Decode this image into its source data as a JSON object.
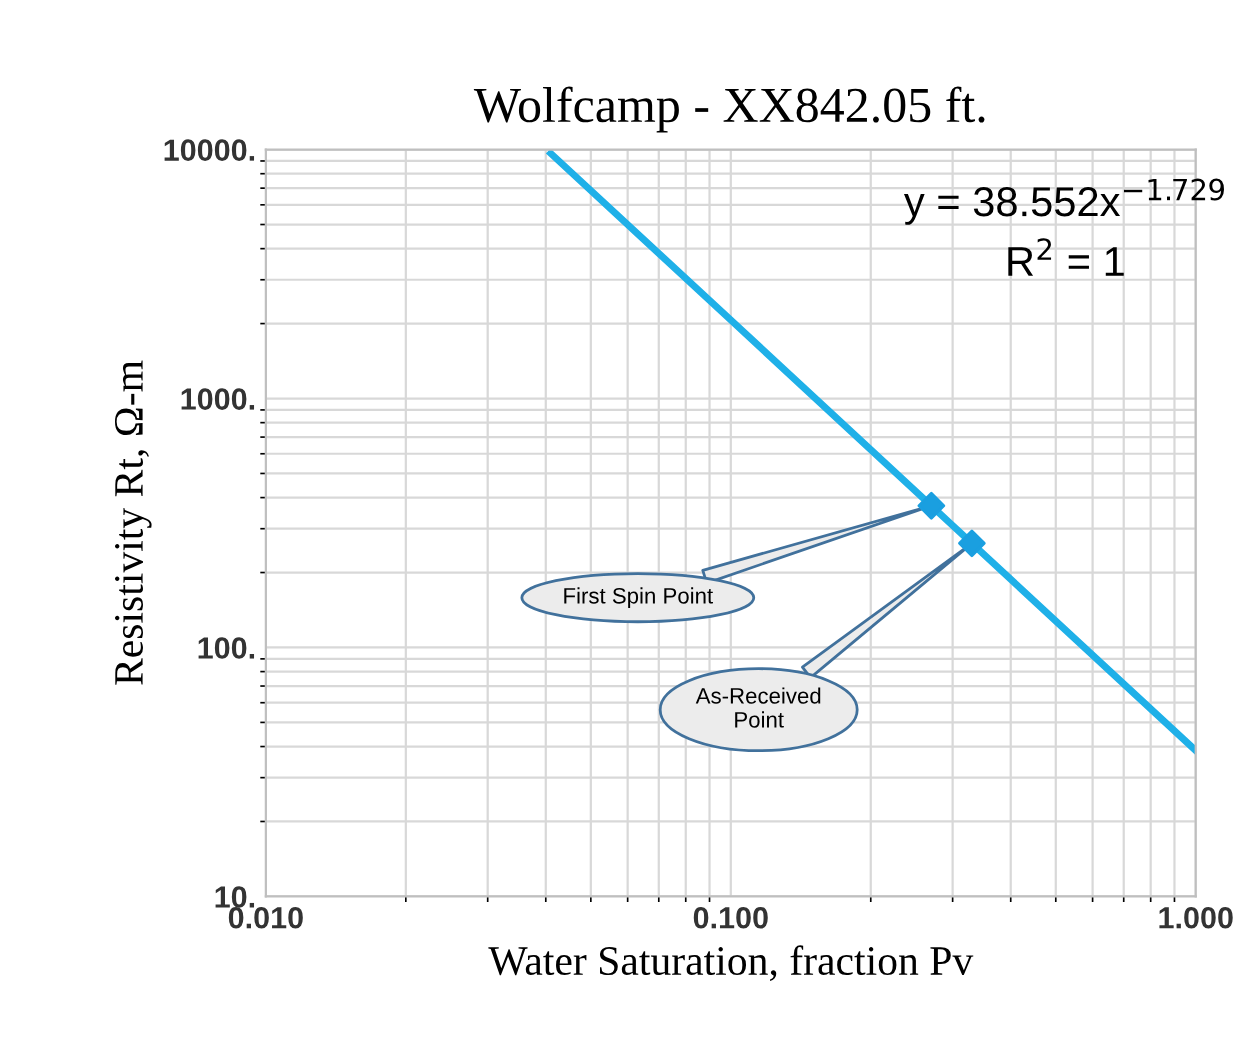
{
  "chart_data": {
    "type": "line",
    "title": "Wolfcamp - XX842.05 ft.",
    "xlabel": "Water Saturation, fraction Pv",
    "ylabel": "Resistivity Rt, Ω-m",
    "log": "xy",
    "grid": true,
    "legend": false,
    "xlim": [
      0.01,
      1
    ],
    "xticks": [
      {
        "value": 0.01,
        "label": "0.010"
      },
      {
        "value": 0.1,
        "label": "0.100"
      },
      {
        "value": 1,
        "label": "1.000"
      }
    ],
    "ylim": [
      10,
      10000
    ],
    "yticks": [
      {
        "value": 10,
        "label": "10."
      },
      {
        "value": 100,
        "label": "100."
      },
      {
        "value": 1000,
        "label": "1000."
      },
      {
        "value": 10000,
        "label": "10000."
      }
    ],
    "series": [
      {
        "color": "#1fb0e8",
        "marker": "none",
        "x": [
          0.041,
          0.1,
          0.3,
          1
        ],
        "values": [
          9650,
          2066,
          309,
          38.55
        ]
      },
      {
        "type": "scatter",
        "color": "#1a9fe0",
        "marker": "diamond",
        "x": [
          0.27,
          0.33
        ],
        "values": [
          371,
          262
        ]
      }
    ],
    "annotations": [
      "y = 38.552x$^{−1.729}$",
      "R$^{2}$ = 1",
      {
        "text": "First Spin Point",
        "x": 0.27,
        "y": 371
      },
      "As-Received\nPoint"
    ]
  }
}
